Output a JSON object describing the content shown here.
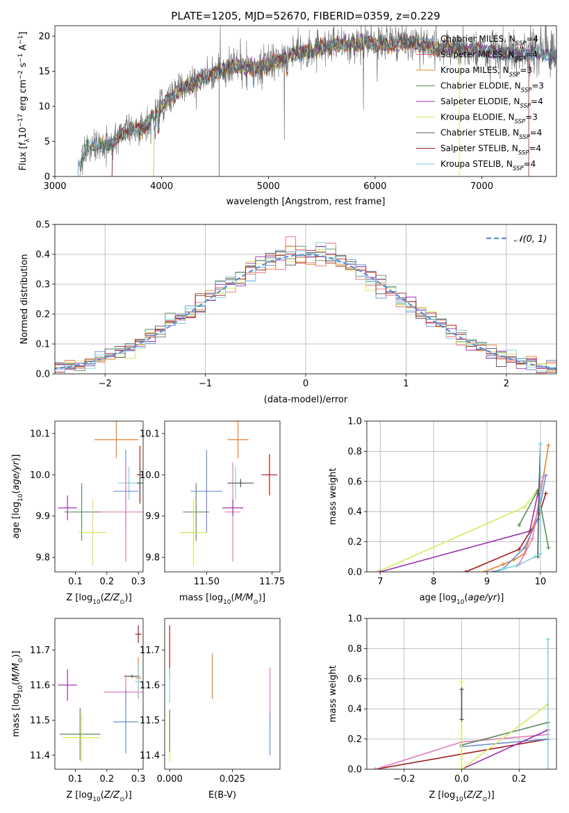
{
  "chart_data": [
    {
      "type": "line",
      "title": "PLATE=1205, MJD=52670, FIBERID=0359, z=0.229",
      "xlabel": "wavelength [Angstrom, rest frame]",
      "ylabel": "Flux [fλ10⁻¹⁷ erg cm⁻² s⁻¹ A⁻¹]",
      "xlim": [
        3000,
        7700
      ],
      "ylim": [
        0,
        21.5
      ],
      "xticks": [
        3000,
        4000,
        5000,
        6000,
        7000
      ],
      "yticks": [
        0,
        5,
        10,
        15,
        20
      ],
      "grid": false,
      "legend_position": "top-right",
      "legend": [
        {
          "name": "Chabrier MILES, N",
          "sub": "SSP",
          "tail": "=4",
          "color": "#6b8dd6"
        },
        {
          "name": "Salpeter MILES, N",
          "sub": "SSP",
          "tail": "=4",
          "color": "#e96a73"
        },
        {
          "name": "Kroupa MILES, N",
          "sub": "SSP",
          "tail": "=3",
          "color": "#e8822a"
        },
        {
          "name": "Chabrier ELODIE, N",
          "sub": "SSP",
          "tail": "=3",
          "color": "#5d8a5d"
        },
        {
          "name": "Salpeter ELODIE, N",
          "sub": "SSP",
          "tail": "=4",
          "color": "#9b30b0"
        },
        {
          "name": "Kroupa ELODIE, N",
          "sub": "SSP",
          "tail": "=3",
          "color": "#d6e85a"
        },
        {
          "name": "Chabrier STELIB, N",
          "sub": "SSP",
          "tail": "=4",
          "color": "#555555"
        },
        {
          "name": "Salpeter STELIB, N",
          "sub": "SSP",
          "tail": "=4",
          "color": "#a01a1a"
        },
        {
          "name": "Kroupa STELIB, N",
          "sub": "SSP",
          "tail": "=4",
          "color": "#7fd0dc"
        }
      ],
      "continuum": {
        "x": [
          3200,
          3300,
          3400,
          3500,
          3600,
          3700,
          3800,
          3900,
          4000,
          4100,
          4200,
          4300,
          4400,
          4500,
          4600,
          4700,
          4800,
          4900,
          5000,
          5100,
          5200,
          5300,
          5400,
          5500,
          5600,
          5700,
          5800,
          5900,
          6000,
          6100,
          6200,
          6300,
          6400,
          6500,
          6600,
          6700,
          6800,
          6900,
          7000,
          7100,
          7200,
          7300,
          7400,
          7500,
          7600,
          7700
        ],
        "y": [
          0,
          4.3,
          4.5,
          4.4,
          5.6,
          6.8,
          6.5,
          8.2,
          10.0,
          11.5,
          12.6,
          13.2,
          14.2,
          14.8,
          15.4,
          15.9,
          15.4,
          15.6,
          16.0,
          16.5,
          17.2,
          17.8,
          17.8,
          18.4,
          18.7,
          18.9,
          18.6,
          19.3,
          18.9,
          18.8,
          18.7,
          19.2,
          18.9,
          18.5,
          18.2,
          18.5,
          18.3,
          18.0,
          18.1,
          17.8,
          17.5,
          17.4,
          17.6,
          17.5,
          17.4,
          17.3
        ]
      }
    },
    {
      "type": "histogram",
      "xlabel": "(data-model)/error",
      "ylabel": "Normed distribution",
      "xlim": [
        -2.5,
        2.5
      ],
      "ylim": [
        0,
        0.5
      ],
      "xticks": [
        -2,
        -1,
        0,
        1,
        2
      ],
      "yticks": [
        0.0,
        0.1,
        0.2,
        0.3,
        0.4,
        0.5
      ],
      "grid": true,
      "legend_position": "top-right",
      "legend": [
        "𝒩(0, 1)"
      ],
      "reference_curve": "normal(0,1)"
    },
    {
      "type": "scatter",
      "subtype": "errorbar",
      "xlabel": "Z [log10(Z/Z⊙)]",
      "ylabel": "age [log10(age/yr)]",
      "xlim": [
        0.035,
        0.315
      ],
      "ylim": [
        9.765,
        10.13
      ],
      "xticks": [
        0.1,
        0.2,
        0.3
      ],
      "yticks": [
        9.8,
        9.9,
        10.0,
        10.1
      ],
      "points": [
        {
          "x": 0.23,
          "y": 10.085,
          "xerr": 0.07,
          "yerr": 0.045,
          "color": "#e8822a"
        },
        {
          "x": 0.305,
          "y": 10.0,
          "xerr": 0.01,
          "yerr": 0.07,
          "color": "#a01a1a"
        },
        {
          "x": 0.27,
          "y": 9.98,
          "xerr": 0.035,
          "yerr": 0.04,
          "color": "#7fd0dc"
        },
        {
          "x": 0.26,
          "y": 9.96,
          "xerr": 0.04,
          "yerr": 0.1,
          "color": "#6b8dd6"
        },
        {
          "x": 0.26,
          "y": 9.91,
          "xerr": 0.1,
          "yerr": 0.12,
          "color": "#e07bbd"
        },
        {
          "x": 0.075,
          "y": 9.92,
          "xerr": 0.03,
          "yerr": 0.03,
          "color": "#9b30b0"
        },
        {
          "x": 0.12,
          "y": 9.91,
          "xerr": 0.055,
          "yerr": 0.07,
          "color": "#5d8a5d"
        },
        {
          "x": 0.155,
          "y": 9.86,
          "xerr": 0.045,
          "yerr": 0.08,
          "color": "#d6e85a"
        },
        {
          "x": 0.305,
          "y": 9.98,
          "xerr": 0.01,
          "yerr": 0.03,
          "color": "#555555"
        }
      ]
    },
    {
      "type": "scatter",
      "subtype": "errorbar",
      "xlabel": "mass [log10(M/M⊙)]",
      "ylabel": "",
      "xlim": [
        11.34,
        11.78
      ],
      "ylim": [
        9.765,
        10.13
      ],
      "xticks": [
        11.5,
        11.75
      ],
      "yticks": [
        9.8,
        9.9,
        10.0,
        10.1
      ],
      "points": [
        {
          "x": 11.62,
          "y": 10.085,
          "xerr": 0.04,
          "yerr": 0.045,
          "color": "#e8822a"
        },
        {
          "x": 11.74,
          "y": 10.0,
          "xerr": 0.03,
          "yerr": 0.05,
          "color": "#a01a1a"
        },
        {
          "x": 11.61,
          "y": 9.98,
          "xerr": 0.03,
          "yerr": 0.04,
          "color": "#7fd0dc"
        },
        {
          "x": 11.5,
          "y": 9.96,
          "xerr": 0.06,
          "yerr": 0.1,
          "color": "#6b8dd6"
        },
        {
          "x": 11.6,
          "y": 9.91,
          "xerr": 0.03,
          "yerr": 0.12,
          "color": "#e07bbd"
        },
        {
          "x": 11.6,
          "y": 9.92,
          "xerr": 0.04,
          "yerr": 0.02,
          "color": "#9b30b0"
        },
        {
          "x": 11.46,
          "y": 9.91,
          "xerr": 0.05,
          "yerr": 0.07,
          "color": "#5d8a5d"
        },
        {
          "x": 11.45,
          "y": 9.86,
          "xerr": 0.05,
          "yerr": 0.08,
          "color": "#d6e85a"
        },
        {
          "x": 11.63,
          "y": 9.98,
          "xerr": 0.05,
          "yerr": 0.01,
          "color": "#555555"
        }
      ]
    },
    {
      "type": "line",
      "xlabel": "age [log10(age/yr)]",
      "ylabel": "mass weight",
      "xlim": [
        6.75,
        10.3
      ],
      "ylim": [
        0,
        1.0
      ],
      "xticks": [
        7,
        8,
        9,
        10
      ],
      "yticks": [
        0.0,
        0.2,
        0.4,
        0.6,
        0.8,
        1.0
      ],
      "grid": true,
      "series": [
        {
          "color": "#d6e85a",
          "x": [
            6.95,
            9.7,
            10.0
          ],
          "y": [
            0.0,
            0.43,
            0.57
          ]
        },
        {
          "color": "#9b30b0",
          "x": [
            7.0,
            9.8,
            10.0
          ],
          "y": [
            0.0,
            0.27,
            0.6
          ]
        },
        {
          "color": "#a01a1a",
          "x": [
            8.6,
            9.6,
            9.95,
            10.1
          ],
          "y": [
            0.0,
            0.15,
            0.35,
            0.52
          ]
        },
        {
          "color": "#e8822a",
          "x": [
            8.95,
            9.3,
            9.5,
            9.7,
            9.95,
            10.15
          ],
          "y": [
            0.0,
            0.05,
            0.08,
            0.12,
            0.4,
            0.84
          ]
        },
        {
          "color": "#6b8dd6",
          "x": [
            9.1,
            9.3,
            9.7,
            9.95,
            10.1
          ],
          "y": [
            0.0,
            0.02,
            0.16,
            0.35,
            0.64
          ]
        },
        {
          "color": "#5d8a5d",
          "x": [
            9.6,
            9.95,
            10.15
          ],
          "y": [
            0.31,
            0.54,
            0.16
          ]
        },
        {
          "color": "#e07bbd",
          "x": [
            9.6,
            9.85,
            10.05
          ],
          "y": [
            0.05,
            0.22,
            0.63
          ]
        },
        {
          "color": "#555555",
          "x": [
            9.95,
            9.97,
            10.0
          ],
          "y": [
            0.1,
            0.52,
            0.85
          ]
        },
        {
          "color": "#7fd0dc",
          "x": [
            9.2,
            9.3,
            9.55,
            9.9,
            10.0,
            10.0
          ],
          "y": [
            0.0,
            0.02,
            0.04,
            0.1,
            0.12,
            0.85
          ]
        }
      ]
    },
    {
      "type": "scatter",
      "subtype": "errorbar",
      "xlabel": "Z [log10(Z/Z⊙)]",
      "ylabel": "mass [log10(M/M⊙)]",
      "xlim": [
        0.035,
        0.315
      ],
      "ylim": [
        11.36,
        11.79
      ],
      "xticks": [
        0.1,
        0.2,
        0.3
      ],
      "yticks": [
        11.4,
        11.5,
        11.6,
        11.7
      ],
      "points": [
        {
          "x": 0.3,
          "y": 11.745,
          "xerr": 0.01,
          "yerr": 0.025,
          "color": "#a01a1a"
        },
        {
          "x": 0.3,
          "y": 11.62,
          "xerr": 0.01,
          "yerr": 0.06,
          "color": "#e8822a"
        },
        {
          "x": 0.28,
          "y": 11.625,
          "xerr": 0.025,
          "yerr": 0.005,
          "color": "#555555"
        },
        {
          "x": 0.3,
          "y": 11.61,
          "xerr": 0.01,
          "yerr": 0.05,
          "color": "#7fd0dc"
        },
        {
          "x": 0.075,
          "y": 11.6,
          "xerr": 0.03,
          "yerr": 0.045,
          "color": "#9b30b0"
        },
        {
          "x": 0.26,
          "y": 11.58,
          "xerr": 0.07,
          "yerr": 0.05,
          "color": "#e07bbd"
        },
        {
          "x": 0.26,
          "y": 11.495,
          "xerr": 0.04,
          "yerr": 0.09,
          "color": "#6b8dd6"
        },
        {
          "x": 0.115,
          "y": 11.46,
          "xerr": 0.065,
          "yerr": 0.075,
          "color": "#5d8a5d"
        },
        {
          "x": 0.12,
          "y": 11.45,
          "xerr": 0.06,
          "yerr": 0.07,
          "color": "#d6e85a"
        }
      ]
    },
    {
      "type": "scatter",
      "subtype": "errorbar",
      "xlabel": "E(B-V)",
      "ylabel": "",
      "xlim": [
        -0.002,
        0.044
      ],
      "ylim": [
        11.36,
        11.79
      ],
      "xticks": [
        0.0,
        0.025
      ],
      "yticks": [
        11.4,
        11.5,
        11.6,
        11.7
      ],
      "points": [
        {
          "x": 0.0,
          "y": 11.7,
          "xerr": 0,
          "yerr": 0.07,
          "color": "#a01a1a"
        },
        {
          "x": 0.0,
          "y": 11.6,
          "xerr": 0,
          "yerr": 0.05,
          "color": "#7fd0dc"
        },
        {
          "x": 0.0,
          "y": 11.45,
          "xerr": 0,
          "yerr": 0.07,
          "color": "#d6e85a"
        },
        {
          "x": 0.0,
          "y": 11.47,
          "xerr": 0,
          "yerr": 0.06,
          "color": "#5d8a5d"
        },
        {
          "x": 0.017,
          "y": 11.625,
          "xerr": 0,
          "yerr": 0.065,
          "color": "#e8822a"
        },
        {
          "x": 0.04,
          "y": 11.57,
          "xerr": 0,
          "yerr": 0.08,
          "color": "#e07bbd"
        },
        {
          "x": 0.04,
          "y": 11.46,
          "xerr": 0,
          "yerr": 0.06,
          "color": "#6b8dd6"
        }
      ]
    },
    {
      "type": "line",
      "xlabel": "Z [log10(Z/Z⊙)]",
      "ylabel": "mass weight",
      "xlim": [
        -0.33,
        0.33
      ],
      "ylim": [
        0,
        1.0
      ],
      "xticks": [
        -0.2,
        0.0,
        0.2
      ],
      "yticks": [
        0.0,
        0.2,
        0.4,
        0.6,
        0.8,
        1.0
      ],
      "grid": true,
      "series": [
        {
          "color": "#a01a1a",
          "x": [
            -0.3,
            0.3
          ],
          "y": [
            0.0,
            0.2
          ]
        },
        {
          "color": "#e07bbd",
          "x": [
            -0.3,
            0.0,
            0.3
          ],
          "y": [
            0.0,
            0.18,
            0.23
          ]
        },
        {
          "color": "#5d8a5d",
          "x": [
            0.0,
            0.3
          ],
          "y": [
            0.16,
            0.31
          ]
        },
        {
          "color": "#6b8dd6",
          "x": [
            0.0,
            0.3
          ],
          "y": [
            0.15,
            0.2
          ]
        },
        {
          "color": "#9b30b0",
          "x": [
            0.0,
            0.3
          ],
          "y": [
            0.0,
            0.26
          ]
        },
        {
          "color": "#d6e85a",
          "x": [
            0.0,
            0.3
          ],
          "y": [
            0.0,
            0.43
          ]
        },
        {
          "color": "#d6e85a",
          "x": [
            0.0,
            0.0
          ],
          "y": [
            0.0,
            0.58
          ]
        },
        {
          "color": "#7fd0dc",
          "x": [
            0.3,
            0.3
          ],
          "y": [
            0.0,
            0.86
          ]
        },
        {
          "color": "#555555",
          "x": [
            0.0,
            0.0
          ],
          "y": [
            0.33,
            0.53
          ]
        }
      ]
    }
  ]
}
